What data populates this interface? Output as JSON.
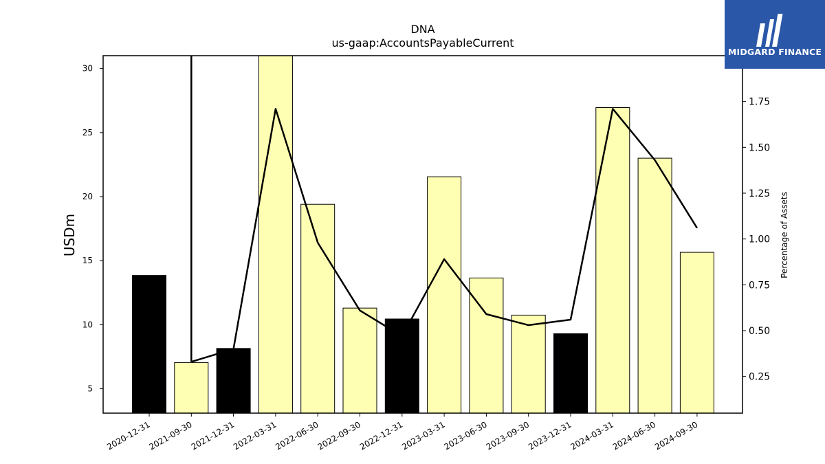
{
  "chart_data": {
    "type": "bar",
    "title": "DNA",
    "subtitle": "us-gaap:AccountsPayableCurrent",
    "xlabel": "",
    "ylabel": "USDm",
    "y2label": "Percentage of Assets",
    "categories": [
      "2020-12-31",
      "2021-09-30",
      "2021-12-31",
      "2022-03-31",
      "2022-06-30",
      "2022-09-30",
      "2022-12-31",
      "2023-03-31",
      "2023-06-30",
      "2023-09-30",
      "2023-12-31",
      "2024-03-31",
      "2024-06-30",
      "2024-09-30"
    ],
    "series": [
      {
        "type": "bar",
        "values": [
          13.85,
          7.05,
          8.15,
          31.0,
          19.4,
          11.3,
          10.45,
          21.55,
          13.65,
          10.75,
          9.3,
          26.95,
          23.0,
          15.65
        ],
        "colors": [
          "#000000",
          "#ffffb3",
          "#000000",
          "#ffffb3",
          "#ffffb3",
          "#ffffb3",
          "#000000",
          "#ffffb3",
          "#ffffb3",
          "#ffffb3",
          "#000000",
          "#ffffb3",
          "#ffffb3",
          "#ffffb3"
        ]
      },
      {
        "type": "line",
        "axis": "right",
        "values": [
          null,
          0.33,
          0.4,
          1.71,
          0.98,
          0.61,
          0.47,
          0.89,
          0.59,
          0.53,
          0.56,
          1.71,
          1.43,
          1.06
        ],
        "color": "#000000"
      }
    ],
    "ylim": [
      3.1,
      31.0
    ],
    "y2lim": [
      0.05,
      2.0
    ],
    "yticks": [
      5,
      10,
      15,
      20,
      25,
      30
    ],
    "y2ticks": [
      "0.25",
      "0.50",
      "0.75",
      "1.00",
      "1.25",
      "1.50",
      "1.75"
    ],
    "grid": false,
    "legend": "none"
  },
  "logo": {
    "text": "MIDGARD FINANCE",
    "brand_color": "#2a57a8"
  }
}
